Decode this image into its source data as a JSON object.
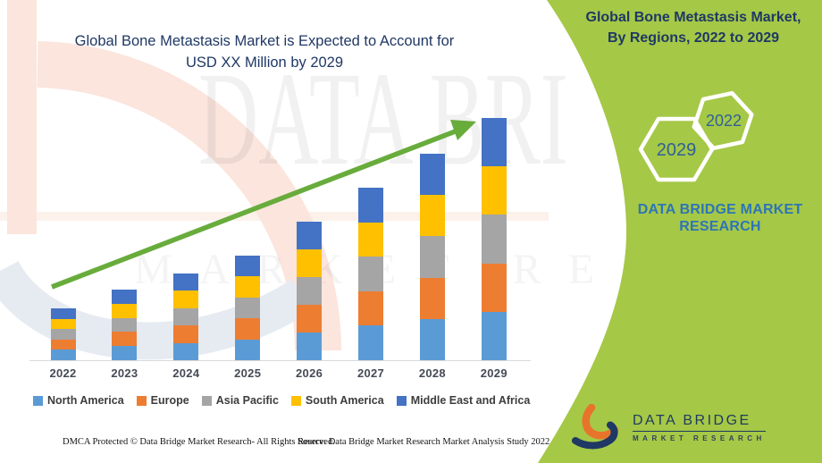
{
  "left_panel": {
    "title_line1": "Global Bone Metastasis Market is Expected to Account for",
    "title_line2": "USD XX Million by 2029",
    "title_color": "#1F3864"
  },
  "chart_data": {
    "type": "stacked-bar",
    "title": "Global Bone Metastasis Market is Expected to Account for USD XX Million by 2029",
    "categories": [
      "2022",
      "2023",
      "2024",
      "2025",
      "2026",
      "2027",
      "2028",
      "2029"
    ],
    "series": [
      {
        "name": "North America",
        "color": "#5B9BD5",
        "values": [
          11.6,
          15.8,
          19.4,
          23.4,
          31.0,
          38.6,
          46.2,
          54.2
        ]
      },
      {
        "name": "Europe",
        "color": "#ED7D31",
        "values": [
          11.6,
          15.8,
          19.4,
          23.4,
          31.0,
          38.6,
          46.2,
          54.2
        ]
      },
      {
        "name": "Asia Pacific",
        "color": "#A5A5A5",
        "values": [
          11.6,
          15.8,
          19.4,
          23.4,
          31.0,
          38.6,
          46.2,
          54.2
        ]
      },
      {
        "name": "South America",
        "color": "#FFC000",
        "values": [
          11.6,
          15.8,
          19.4,
          23.4,
          31.0,
          38.6,
          46.2,
          54.2
        ]
      },
      {
        "name": "Middle East and Africa",
        "color": "#4472C4",
        "values": [
          11.6,
          15.8,
          19.4,
          23.4,
          31.0,
          38.6,
          46.2,
          54.2
        ]
      }
    ],
    "stack_order_bottom_to_top": [
      "North America",
      "Europe",
      "Asia Pacific",
      "South America",
      "Middle East and Africa"
    ],
    "xlabel": "",
    "ylabel": "",
    "units": "relative height index (actual USD values masked as XX in source)",
    "value_axis_visible": false,
    "gridlines": false,
    "legend_position": "bottom",
    "trend_arrow": {
      "present": true,
      "color": "#68AC3C",
      "direction": "up-right"
    }
  },
  "right_panel": {
    "background_color": "#A5C847",
    "title_line1": "Global Bone Metastasis Market,",
    "title_line2": "By Regions, 2022 to 2029",
    "hexagon_back_year": "2029",
    "hexagon_front_year": "2022",
    "brand_line1": "DATA BRIDGE MARKET",
    "brand_line2": "RESEARCH",
    "brand_color": "#2E75B6"
  },
  "logo": {
    "name": "DATA BRIDGE",
    "subtitle": "MARKET RESEARCH"
  },
  "watermark": {
    "text_line1": "DATA BRI",
    "text_line2": "MARKET RESEARCH"
  },
  "footer": {
    "left": "DMCA Protected © Data Bridge Market Research- All Rights Reserved.",
    "right": "Source: Data Bridge Market Research Market Analysis Study 2022"
  }
}
